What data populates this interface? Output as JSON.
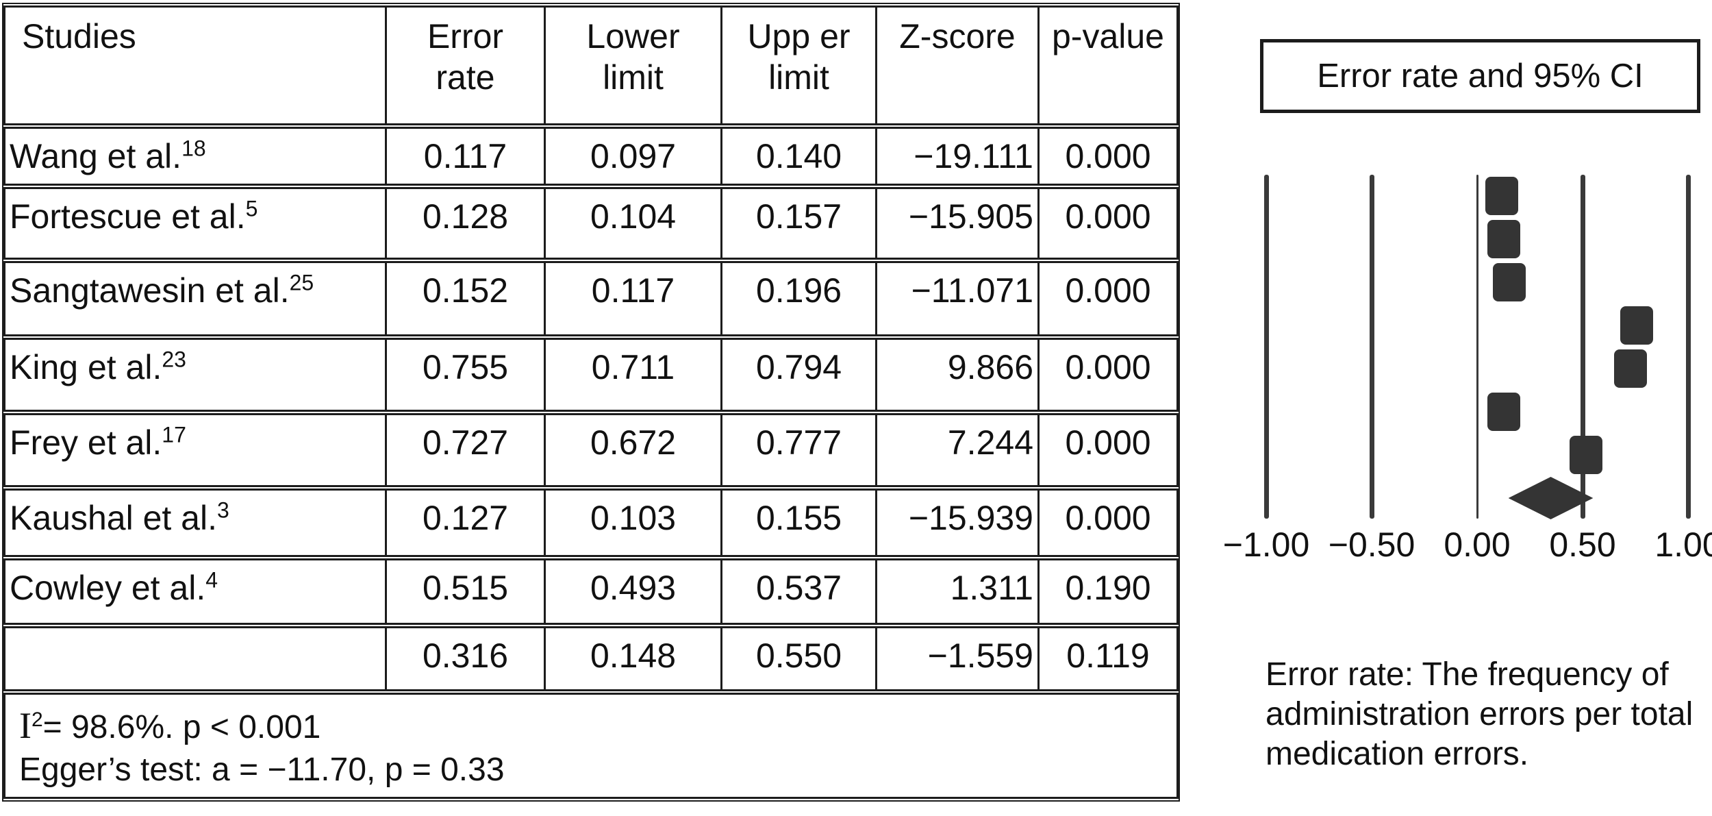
{
  "table": {
    "columns": [
      {
        "label": "Studies"
      },
      {
        "label": "Error\nrate"
      },
      {
        "label": "Lower\nlimit"
      },
      {
        "label": "Upp er\nlimit"
      },
      {
        "label": "Z-score"
      },
      {
        "label": "p-value"
      }
    ],
    "rows": [
      {
        "study": "Wang et al.",
        "ref": "18",
        "error_rate": "0.117",
        "lower": "0.097",
        "upper": "0.140",
        "z": "−19.111",
        "p": "0.000"
      },
      {
        "study": "Fortescue et al.",
        "ref": "5",
        "error_rate": "0.128",
        "lower": "0.104",
        "upper": "0.157",
        "z": "−15.905",
        "p": "0.000"
      },
      {
        "study": "Sangtawesin et al.",
        "ref": "25",
        "error_rate": "0.152",
        "lower": "0.117",
        "upper": "0.196",
        "z": "−11.071",
        "p": "0.000"
      },
      {
        "study": "King et al.",
        "ref": "23",
        "error_rate": "0.755",
        "lower": "0.711",
        "upper": "0.794",
        "z": "9.866",
        "p": "0.000"
      },
      {
        "study": "Frey et al.",
        "ref": "17",
        "error_rate": "0.727",
        "lower": "0.672",
        "upper": "0.777",
        "z": "7.244",
        "p": "0.000"
      },
      {
        "study": "Kaushal et al.",
        "ref": "3",
        "error_rate": "0.127",
        "lower": "0.103",
        "upper": "0.155",
        "z": "−15.939",
        "p": "0.000"
      },
      {
        "study": "Cowley et al.",
        "ref": "4",
        "error_rate": "0.515",
        "lower": "0.493",
        "upper": "0.537",
        "z": "1.311",
        "p": "0.190"
      },
      {
        "study": "",
        "ref": "",
        "error_rate": "0.316",
        "lower": "0.148",
        "upper": "0.550",
        "z": "−1.559",
        "p": "0.119"
      }
    ],
    "footnote": {
      "i_symbol": "I",
      "i_sup": "2",
      "line1_rest": "= 98.6%. p < 0.001",
      "line2": "Egger’s test: a = −11.70, p = 0.33"
    }
  },
  "plot": {
    "title": "Error rate and 95% CI",
    "caption": "Error rate: The frequency of\nadministration errors per total\nmedication errors."
  },
  "chart_data": {
    "type": "forest",
    "title": "Error rate and 95% CI",
    "xlabel": "Error rate",
    "xlim": [
      -1.0,
      1.0
    ],
    "x_ticks": [
      "−1.00",
      "−0.50",
      "0.00",
      "0.50",
      "1.00"
    ],
    "x_tick_values": [
      -1.0,
      -0.5,
      0.0,
      0.5,
      1.0
    ],
    "grid": "vertical-lines",
    "marker": "square",
    "summary_marker": "diamond",
    "studies": [
      {
        "name": "Wang et al.",
        "ref": "18",
        "value": 0.117,
        "lower": 0.097,
        "upper": 0.14,
        "z": -19.111,
        "p": 0.0
      },
      {
        "name": "Fortescue et al.",
        "ref": "5",
        "value": 0.128,
        "lower": 0.104,
        "upper": 0.157,
        "z": -15.905,
        "p": 0.0
      },
      {
        "name": "Sangtawesin et al.",
        "ref": "25",
        "value": 0.152,
        "lower": 0.117,
        "upper": 0.196,
        "z": -11.071,
        "p": 0.0
      },
      {
        "name": "King et al.",
        "ref": "23",
        "value": 0.755,
        "lower": 0.711,
        "upper": 0.794,
        "z": 9.866,
        "p": 0.0
      },
      {
        "name": "Frey et al.",
        "ref": "17",
        "value": 0.727,
        "lower": 0.672,
        "upper": 0.777,
        "z": 7.244,
        "p": 0.0
      },
      {
        "name": "Kaushal et al.",
        "ref": "3",
        "value": 0.127,
        "lower": 0.103,
        "upper": 0.155,
        "z": -15.939,
        "p": 0.0
      },
      {
        "name": "Cowley et al.",
        "ref": "4",
        "value": 0.515,
        "lower": 0.493,
        "upper": 0.537,
        "z": 1.311,
        "p": 0.19
      }
    ],
    "summary": {
      "value": 0.316,
      "lower": 0.148,
      "upper": 0.55,
      "z": -1.559,
      "p": 0.119
    },
    "heterogeneity": "I2= 98.6%. p < 0.001",
    "eggers_test": "Egger’s test: a = −11.70, p = 0.33",
    "colors": {
      "marker": "#343434",
      "gridline": "#3a3a3a",
      "text": "#111111"
    }
  }
}
